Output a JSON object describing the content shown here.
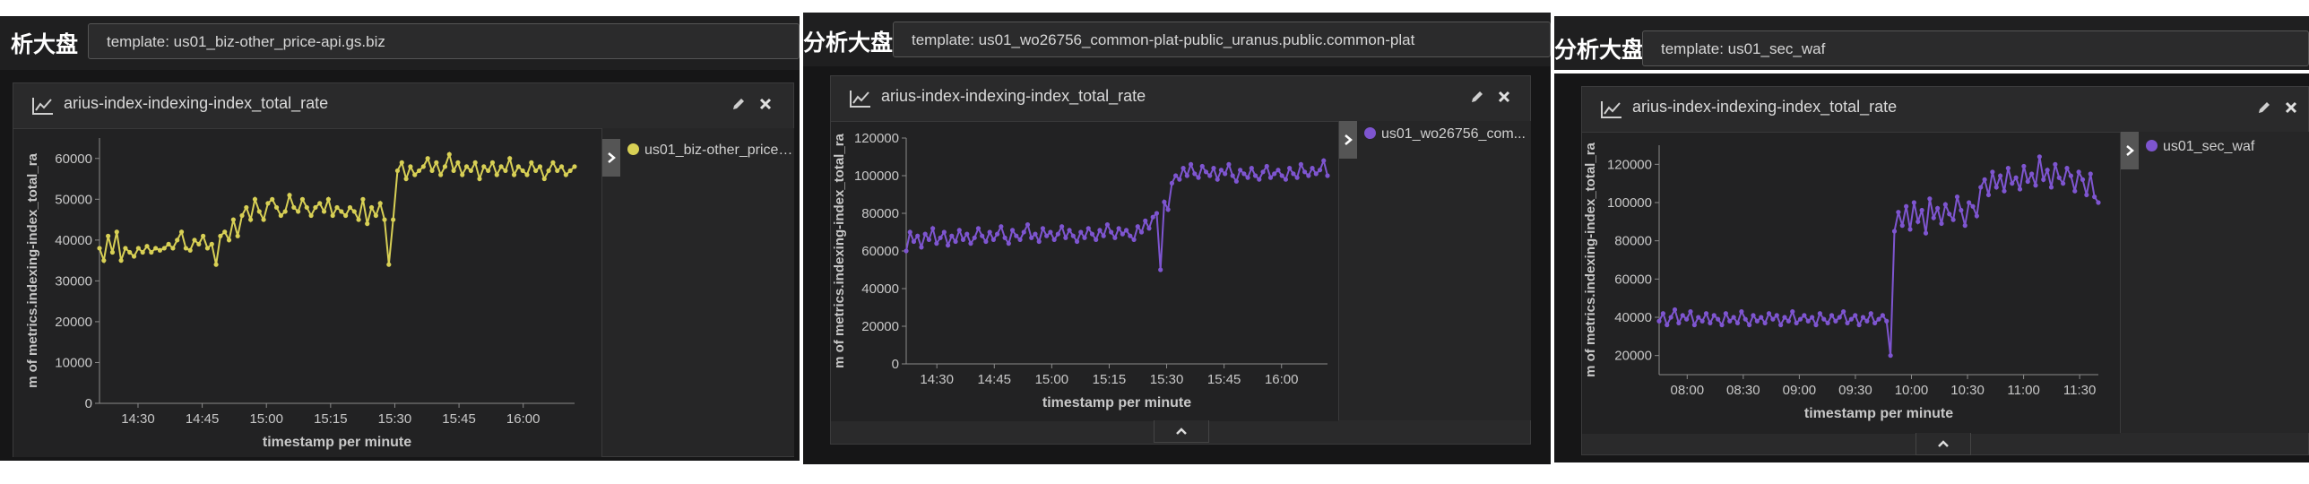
{
  "page_title_fragment_left": "析大盘",
  "page_title_fragment_mid": "分析大盘",
  "page_title_fragment_right": "分析大盘",
  "chart_data": [
    {
      "type": "line",
      "template": "template: us01_biz-other_price-api.gs.biz",
      "title": "arius-index-indexing-index_total_rate",
      "xlabel": "timestamp per minute",
      "ylabel": "m of metrics.indexing-index_total_ra",
      "xticks": [
        "14:30",
        "14:45",
        "15:00",
        "15:15",
        "15:30",
        "15:45",
        "16:00"
      ],
      "yticks": [
        0,
        10000,
        20000,
        30000,
        40000,
        50000,
        60000
      ],
      "ylim": [
        0,
        65000
      ],
      "color": "#d8d055",
      "legend": "top-right",
      "series": [
        {
          "name": "us01_biz-other_price-...",
          "x_start": "14:21",
          "x_end": "16:12",
          "values": [
            38000,
            35000,
            41000,
            37000,
            42000,
            35000,
            38000,
            37000,
            36000,
            38000,
            37000,
            38500,
            37000,
            38000,
            37500,
            38000,
            39000,
            38000,
            40000,
            42000,
            38000,
            37500,
            40000,
            39000,
            41000,
            38000,
            39000,
            34000,
            41000,
            42000,
            40000,
            45000,
            41000,
            46000,
            48000,
            45000,
            50000,
            47000,
            45000,
            49000,
            50000,
            48000,
            46000,
            47000,
            51000,
            48000,
            47000,
            50000,
            48000,
            46000,
            48000,
            49000,
            47000,
            50000,
            46000,
            48000,
            47000,
            46000,
            48000,
            47000,
            45000,
            50000,
            44000,
            48000,
            46000,
            49000,
            45000,
            34000,
            45000,
            57000,
            59000,
            55000,
            58000,
            56000,
            57000,
            58000,
            60000,
            57000,
            59000,
            56000,
            58000,
            61000,
            57000,
            59000,
            56000,
            58000,
            57000,
            59000,
            55000,
            58000,
            57000,
            59000,
            56000,
            58000,
            57000,
            60000,
            56000,
            58000,
            57000,
            56000,
            59000,
            57000,
            58000,
            55000,
            57000,
            59000,
            57000,
            58000,
            56000,
            57000,
            58000
          ]
        }
      ]
    },
    {
      "type": "line",
      "template": "template: us01_wo26756_common-plat-public_uranus.public.common-plat",
      "title": "arius-index-indexing-index_total_rate",
      "xlabel": "timestamp per minute",
      "ylabel": "m of metrics.indexing-index_total_ra",
      "xticks": [
        "14:30",
        "14:45",
        "15:00",
        "15:15",
        "15:30",
        "15:45",
        "16:00"
      ],
      "yticks": [
        0,
        20000,
        40000,
        60000,
        80000,
        100000,
        120000
      ],
      "ylim": [
        0,
        120000
      ],
      "color": "#7e55d0",
      "legend": "top-right",
      "series": [
        {
          "name": "us01_wo26756_com...",
          "x_start": "14:22",
          "x_end": "16:12",
          "values": [
            60000,
            70000,
            65000,
            68000,
            62000,
            69000,
            66000,
            72000,
            64000,
            67000,
            70000,
            63000,
            68000,
            65000,
            71000,
            66000,
            69000,
            64000,
            67000,
            72000,
            68000,
            65000,
            70000,
            66000,
            69000,
            73000,
            67000,
            64000,
            71000,
            68000,
            66000,
            70000,
            74000,
            67000,
            69000,
            65000,
            72000,
            68000,
            70000,
            66000,
            69000,
            73000,
            67000,
            71000,
            68000,
            65000,
            70000,
            67000,
            72000,
            69000,
            66000,
            71000,
            68000,
            74000,
            70000,
            67000,
            72000,
            69000,
            71000,
            68000,
            66000,
            73000,
            70000,
            76000,
            72000,
            78000,
            80000,
            50000,
            86000,
            82000,
            96000,
            100000,
            98000,
            104000,
            100000,
            106000,
            101000,
            99000,
            105000,
            102000,
            100000,
            104000,
            98000,
            103000,
            101000,
            106000,
            100000,
            97000,
            103000,
            101000,
            99000,
            104000,
            100000,
            98000,
            102000,
            105000,
            99000,
            101000,
            103000,
            100000,
            98000,
            104000,
            101000,
            99000,
            106000,
            102000,
            100000,
            104000,
            101000,
            103000,
            108000,
            100000
          ]
        }
      ]
    },
    {
      "type": "line",
      "template": "template: us01_sec_waf",
      "title": "arius-index-indexing-index_total_rate",
      "xlabel": "timestamp per minute",
      "ylabel": "m of metrics.indexing-index_total_ra",
      "xticks": [
        "08:00",
        "08:30",
        "09:00",
        "09:30",
        "10:00",
        "10:30",
        "11:00",
        "11:30"
      ],
      "yticks": [
        20000,
        40000,
        60000,
        80000,
        100000,
        120000
      ],
      "ylim": [
        10000,
        130000
      ],
      "color": "#7e55d0",
      "legend": "top-right",
      "series": [
        {
          "name": "us01_sec_waf",
          "x_start": "07:45",
          "x_end": "11:40",
          "values": [
            38000,
            42000,
            36000,
            40000,
            44000,
            37000,
            41000,
            39000,
            43000,
            36000,
            40000,
            38000,
            42000,
            37000,
            41000,
            39000,
            36000,
            42000,
            38000,
            40000,
            37000,
            43000,
            39000,
            36000,
            41000,
            38000,
            40000,
            37000,
            42000,
            39000,
            41000,
            36000,
            40000,
            38000,
            43000,
            37000,
            39000,
            41000,
            38000,
            40000,
            36000,
            42000,
            39000,
            37000,
            41000,
            38000,
            40000,
            43000,
            37000,
            39000,
            41000,
            36000,
            40000,
            38000,
            42000,
            37000,
            39000,
            41000,
            38000,
            20000,
            85000,
            95000,
            88000,
            98000,
            86000,
            100000,
            90000,
            96000,
            84000,
            102000,
            92000,
            97000,
            89000,
            99000,
            94000,
            91000,
            103000,
            96000,
            88000,
            100000,
            98000,
            93000,
            108000,
            112000,
            104000,
            116000,
            108000,
            114000,
            106000,
            118000,
            110000,
            113000,
            107000,
            119000,
            111000,
            115000,
            109000,
            124000,
            112000,
            117000,
            108000,
            120000,
            113000,
            110000,
            118000,
            114000,
            106000,
            116000,
            112000,
            104000,
            115000,
            103000,
            100000
          ]
        }
      ]
    }
  ]
}
